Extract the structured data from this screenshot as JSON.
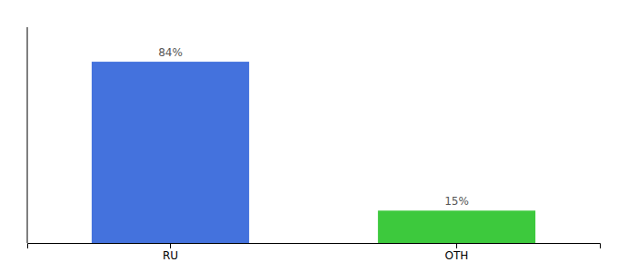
{
  "chart_data": {
    "type": "bar",
    "categories": [
      "RU",
      "OTH"
    ],
    "values": [
      84,
      15
    ],
    "value_labels": [
      "84%",
      "15%"
    ],
    "colors": [
      "#4472DD",
      "#3DC93D"
    ],
    "ylim": [
      0,
      100
    ],
    "data_labels": true,
    "tick_labels": "x"
  }
}
